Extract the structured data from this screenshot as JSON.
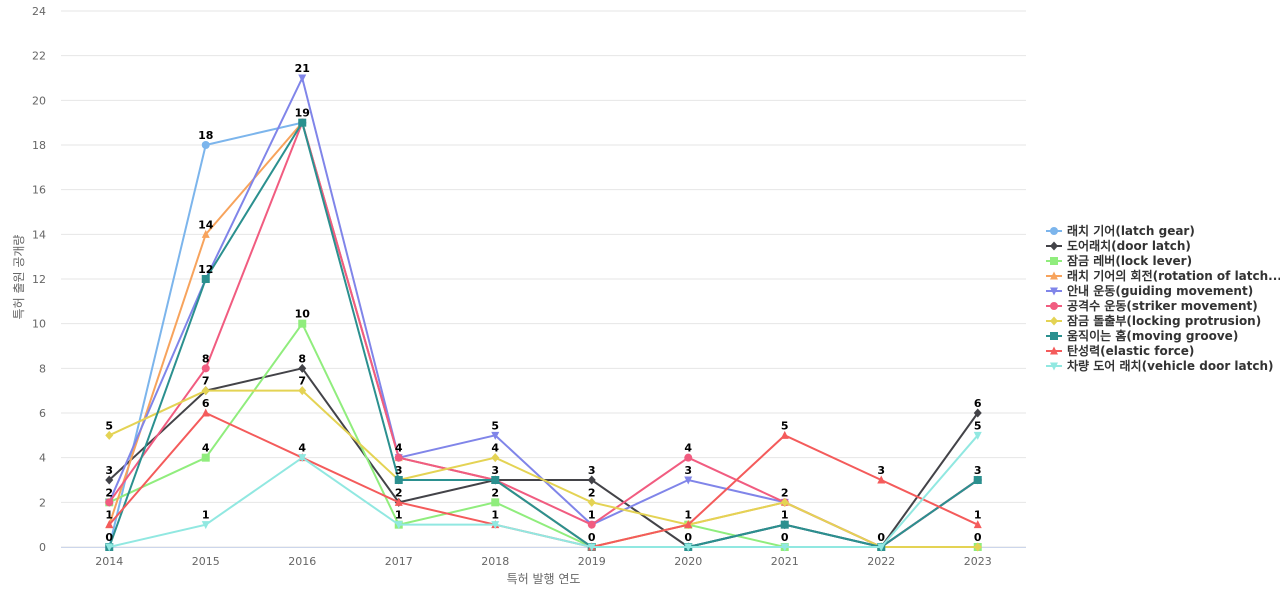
{
  "chart_data": {
    "type": "line",
    "title": "",
    "xlabel": "특허 발행 연도",
    "ylabel": "특허 출원 공개량",
    "x": [
      2014,
      2015,
      2016,
      2017,
      2018,
      2019,
      2020,
      2021,
      2022,
      2023
    ],
    "ylim": [
      0,
      24
    ],
    "yticks": [
      0,
      2,
      4,
      6,
      8,
      10,
      12,
      14,
      16,
      18,
      20,
      22,
      24
    ],
    "grid": true,
    "legend_position": "right",
    "series": [
      {
        "name": "래치 기어(latch gear)",
        "color": "#7cb5ec",
        "marker": "circle",
        "values": [
          0,
          18,
          19,
          4,
          3,
          0,
          0,
          1,
          0,
          3
        ]
      },
      {
        "name": "도어래치(door latch)",
        "color": "#434348",
        "marker": "diamond",
        "values": [
          3,
          7,
          8,
          2,
          3,
          3,
          0,
          1,
          0,
          6
        ]
      },
      {
        "name": "잠금 레버(lock lever)",
        "color": "#90ed7d",
        "marker": "square",
        "values": [
          2,
          4,
          10,
          1,
          2,
          0,
          1,
          0,
          0,
          0
        ]
      },
      {
        "name": "래치 기어의 회전(rotation of latch...",
        "color": "#f7a35c",
        "marker": "triangle",
        "values": [
          1,
          14,
          19,
          4,
          3,
          0,
          1,
          2,
          0,
          3
        ]
      },
      {
        "name": "안내 운동(guiding movement)",
        "color": "#8085e9",
        "marker": "triangle-down",
        "values": [
          2,
          12,
          21,
          4,
          5,
          1,
          3,
          2,
          0,
          3
        ]
      },
      {
        "name": "공격수 운동(striker movement)",
        "color": "#f15c80",
        "marker": "circle",
        "values": [
          2,
          8,
          19,
          4,
          3,
          1,
          4,
          2,
          0,
          3
        ]
      },
      {
        "name": "잠금 돌출부(locking protrusion)",
        "color": "#e4d354",
        "marker": "diamond",
        "values": [
          5,
          7,
          7,
          3,
          4,
          2,
          1,
          2,
          0,
          0
        ]
      },
      {
        "name": "움직이는 홈(moving groove)",
        "color": "#2b908f",
        "marker": "square",
        "values": [
          0,
          12,
          19,
          3,
          3,
          0,
          0,
          1,
          0,
          3
        ]
      },
      {
        "name": "탄성력(elastic force)",
        "color": "#f45b5b",
        "marker": "triangle",
        "values": [
          1,
          6,
          4,
          2,
          1,
          0,
          1,
          5,
          3,
          1
        ]
      },
      {
        "name": "차량 도어 래치(vehicle door latch)",
        "color": "#91e8e1",
        "marker": "triangle-down",
        "values": [
          0,
          1,
          4,
          1,
          1,
          0,
          0,
          0,
          0,
          5
        ]
      }
    ],
    "data_labels": [
      {
        "x": 2014,
        "text": "5",
        "value": 5
      },
      {
        "x": 2014,
        "text": "3",
        "value": 3
      },
      {
        "x": 2014,
        "text": "2",
        "value": 2
      },
      {
        "x": 2014,
        "text": "1",
        "value": 1
      },
      {
        "x": 2014,
        "text": "0",
        "value": 0
      },
      {
        "x": 2015,
        "text": "18",
        "value": 18
      },
      {
        "x": 2015,
        "text": "14",
        "value": 14
      },
      {
        "x": 2015,
        "text": "12",
        "value": 12
      },
      {
        "x": 2015,
        "text": "8",
        "value": 8
      },
      {
        "x": 2015,
        "text": "7",
        "value": 7
      },
      {
        "x": 2015,
        "text": "6",
        "value": 6
      },
      {
        "x": 2015,
        "text": "4",
        "value": 4
      },
      {
        "x": 2015,
        "text": "1",
        "value": 1
      },
      {
        "x": 2016,
        "text": "21",
        "value": 21
      },
      {
        "x": 2016,
        "text": "19",
        "value": 19
      },
      {
        "x": 2016,
        "text": "10",
        "value": 10
      },
      {
        "x": 2016,
        "text": "8",
        "value": 8
      },
      {
        "x": 2016,
        "text": "7",
        "value": 7
      },
      {
        "x": 2016,
        "text": "4",
        "value": 4
      },
      {
        "x": 2017,
        "text": "4",
        "value": 4
      },
      {
        "x": 2017,
        "text": "3",
        "value": 3
      },
      {
        "x": 2017,
        "text": "2",
        "value": 2
      },
      {
        "x": 2017,
        "text": "1",
        "value": 1
      },
      {
        "x": 2018,
        "text": "5",
        "value": 5
      },
      {
        "x": 2018,
        "text": "4",
        "value": 4
      },
      {
        "x": 2018,
        "text": "3",
        "value": 3
      },
      {
        "x": 2018,
        "text": "2",
        "value": 2
      },
      {
        "x": 2018,
        "text": "1",
        "value": 1
      },
      {
        "x": 2019,
        "text": "3",
        "value": 3
      },
      {
        "x": 2019,
        "text": "2",
        "value": 2
      },
      {
        "x": 2019,
        "text": "1",
        "value": 1
      },
      {
        "x": 2019,
        "text": "0",
        "value": 0
      },
      {
        "x": 2020,
        "text": "4",
        "value": 4
      },
      {
        "x": 2020,
        "text": "3",
        "value": 3
      },
      {
        "x": 2020,
        "text": "1",
        "value": 1
      },
      {
        "x": 2020,
        "text": "0",
        "value": 0
      },
      {
        "x": 2021,
        "text": "5",
        "value": 5
      },
      {
        "x": 2021,
        "text": "2",
        "value": 2
      },
      {
        "x": 2021,
        "text": "1",
        "value": 1
      },
      {
        "x": 2021,
        "text": "0",
        "value": 0
      },
      {
        "x": 2022,
        "text": "3",
        "value": 3
      },
      {
        "x": 2022,
        "text": "0",
        "value": 0
      },
      {
        "x": 2023,
        "text": "6",
        "value": 6
      },
      {
        "x": 2023,
        "text": "5",
        "value": 5
      },
      {
        "x": 2023,
        "text": "3",
        "value": 3
      },
      {
        "x": 2023,
        "text": "1",
        "value": 1
      },
      {
        "x": 2023,
        "text": "0",
        "value": 0
      }
    ]
  }
}
